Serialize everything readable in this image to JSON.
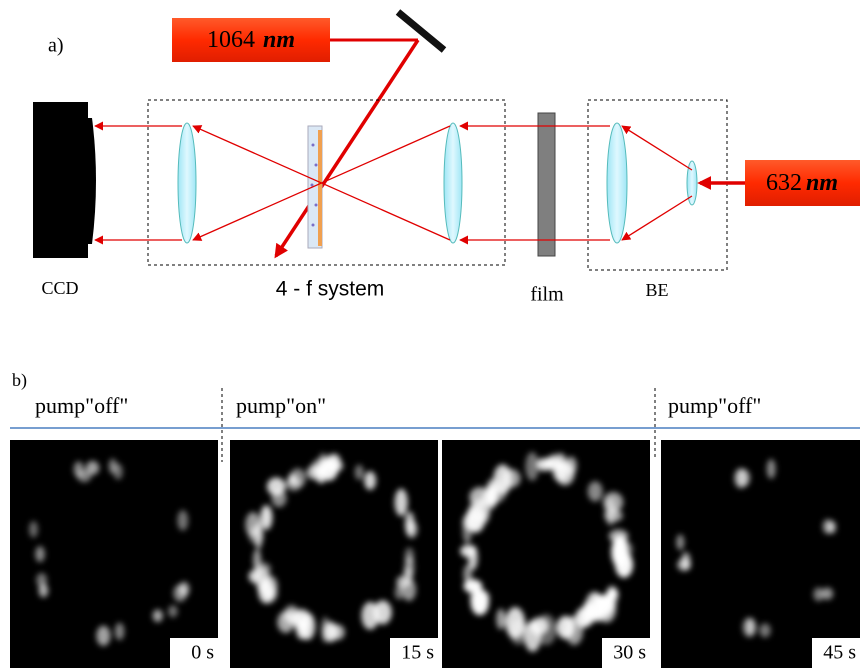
{
  "panel_a": {
    "label": "a)",
    "pump_laser": {
      "wavelength": "1064",
      "unit": "nm"
    },
    "probe_laser": {
      "wavelength": "632",
      "unit": "nm"
    },
    "ccd": "CCD",
    "four_f": "4 - f system",
    "film": "film",
    "be": "BE"
  },
  "panel_b": {
    "label": "b)",
    "phases": [
      "pump\"off\"",
      "pump\"on\"",
      "pump\"off\""
    ],
    "frames": [
      "0 s",
      "15 s",
      "30 s",
      "45 s"
    ]
  }
}
